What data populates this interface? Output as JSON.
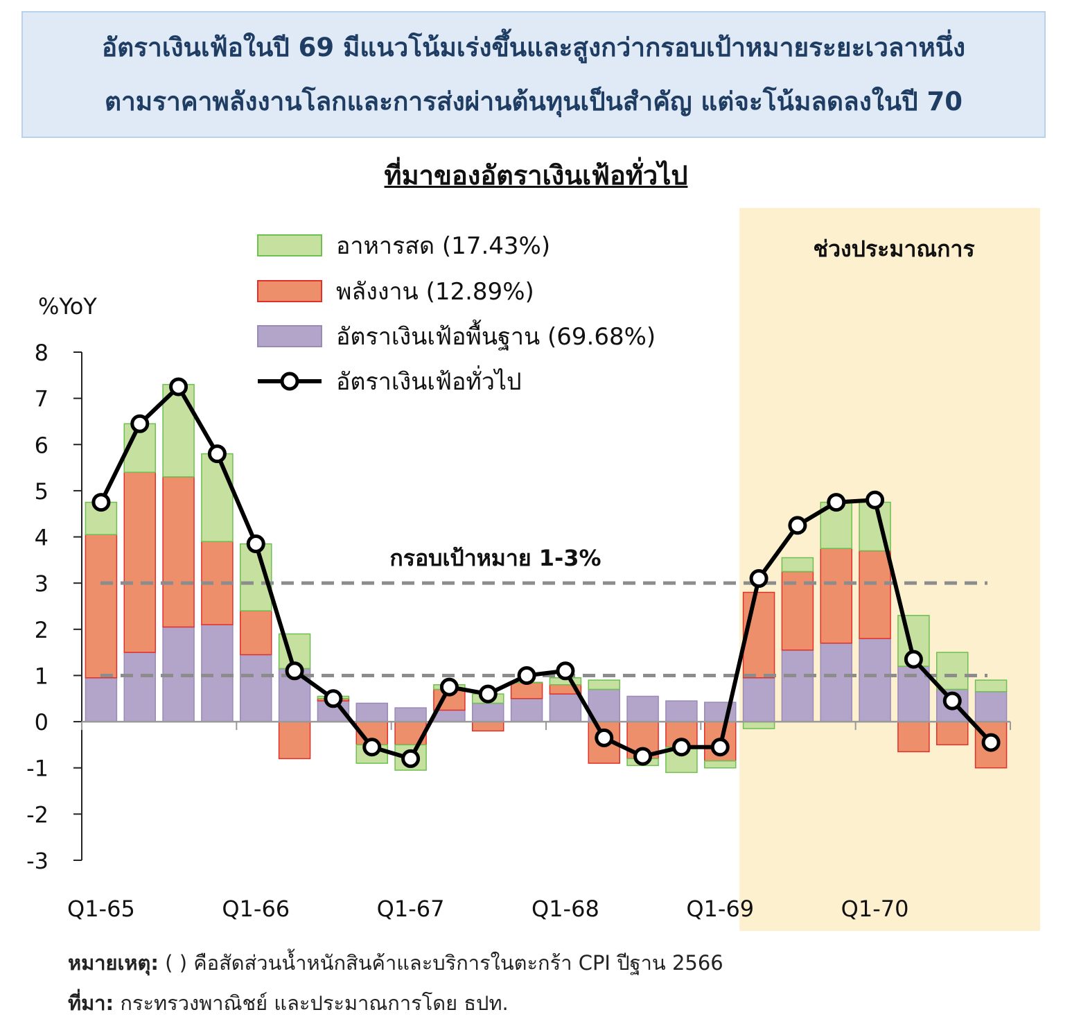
{
  "headline": {
    "line1": "อัตราเงินเฟ้อในปี 69 มีแนวโน้มเร่งขึ้นและสูงกว่ากรอบเป้าหมายระยะเวลาหนึ่ง",
    "line2": "ตามราคาพลังงานโลกและการส่งผ่านต้นทุนเป็นสำคัญ แต่จะโน้มลดลงในปี 70"
  },
  "chart_title": "ที่มาของอัตราเงินเฟ้อทั่วไป",
  "footnote": {
    "note_label": "หมายเหตุ:",
    "note_text": " ( ) คือสัดส่วนน้ำหนักสินค้าและบริการในตะกร้า CPI ปีฐาน 2566",
    "source_label": "ที่มา:",
    "source_text": " กระทรวงพาณิชย์ และประมาณการโดย ธปท."
  },
  "colors": {
    "food": "#c6e0a0",
    "food_border": "#6cbf50",
    "energy": "#ee8f6c",
    "energy_border": "#e0302a",
    "core": "#b3a4c9",
    "core_border": "#9a8ab8",
    "line": "#000000",
    "target": "#8c8c8c",
    "forecast_bg": "#fdf0cf"
  },
  "chart_data": {
    "type": "bar",
    "stacked": true,
    "ylabel": "%YoY",
    "ylim": [
      -3,
      8
    ],
    "yticks": [
      "8",
      "7",
      "6",
      "5",
      "4",
      "3",
      "2",
      "1",
      "0",
      "-1",
      "-2",
      "-3"
    ],
    "x_labels": [
      "Q1-65",
      "Q1-66",
      "Q1-67",
      "Q1-68",
      "Q1-69",
      "Q1-70"
    ],
    "x_label_index": [
      0,
      4,
      8,
      12,
      16,
      20
    ],
    "categories": [
      "Q1-65",
      "Q2-65",
      "Q3-65",
      "Q4-65",
      "Q1-66",
      "Q2-66",
      "Q3-66",
      "Q4-66",
      "Q1-67",
      "Q2-67",
      "Q3-67",
      "Q4-67",
      "Q1-68",
      "Q2-68",
      "Q3-68",
      "Q4-68",
      "Q1-69",
      "Q2-69",
      "Q3-69",
      "Q4-69",
      "Q1-70",
      "Q2-70",
      "Q3-70",
      "Q4-70"
    ],
    "series": [
      {
        "name": "อาหารสด (17.43%)",
        "key": "food",
        "legend": "อาหารสด (17.43%)",
        "values": [
          0.7,
          1.05,
          2.0,
          1.9,
          1.45,
          0.75,
          0.05,
          -0.4,
          -0.55,
          0.1,
          0.2,
          0.0,
          0.15,
          0.2,
          -0.15,
          -0.55,
          -0.15,
          -0.15,
          0.3,
          1.0,
          1.05,
          1.1,
          0.8,
          0.25
        ]
      },
      {
        "name": "พลังงาน (12.89%)",
        "key": "energy",
        "legend": "พลังงาน (12.89%)",
        "values": [
          3.1,
          3.9,
          3.25,
          1.8,
          0.95,
          -0.8,
          0.05,
          -0.5,
          -0.5,
          0.45,
          -0.2,
          0.35,
          0.2,
          -0.9,
          -0.8,
          -0.55,
          -0.85,
          1.85,
          1.7,
          2.05,
          1.9,
          -0.65,
          -0.5,
          -1.0
        ]
      },
      {
        "name": "อัตราเงินเฟ้อพื้นฐาน (69.68%)",
        "key": "core",
        "legend": "อัตราเงินเฟ้อพื้นฐาน (69.68%)",
        "values": [
          0.95,
          1.5,
          2.05,
          2.1,
          1.45,
          1.15,
          0.45,
          0.4,
          0.3,
          0.25,
          0.4,
          0.5,
          0.6,
          0.7,
          0.55,
          0.45,
          0.42,
          0.95,
          1.55,
          1.7,
          1.8,
          1.2,
          0.7,
          0.65
        ]
      },
      {
        "name": "อัตราเงินเฟ้อทั่วไป",
        "key": "headline",
        "legend": "อัตราเงินเฟ้อทั่วไป",
        "type": "line",
        "values": [
          4.75,
          6.45,
          7.25,
          5.8,
          3.85,
          1.1,
          0.5,
          -0.55,
          -0.8,
          0.75,
          0.6,
          1.0,
          1.1,
          -0.35,
          -0.75,
          -0.55,
          -0.55,
          3.1,
          4.25,
          4.75,
          4.8,
          1.35,
          0.45,
          -0.45
        ]
      }
    ],
    "target_band": {
      "label": "กรอบเป้าหมาย 1-3%",
      "low": 1,
      "high": 3
    },
    "forecast": {
      "label": "ช่วงประมาณการ",
      "start_category": "Q2-69"
    }
  }
}
